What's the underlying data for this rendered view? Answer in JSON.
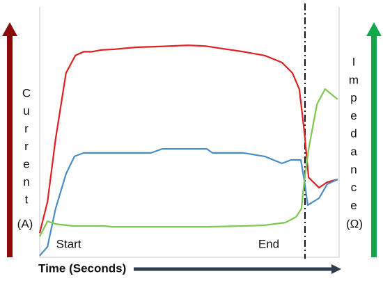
{
  "chart_data": {
    "type": "line",
    "xlim": [
      0,
      100
    ],
    "ylim": [
      0,
      100
    ],
    "y_label_letters": [
      "C",
      "u",
      "r",
      "r",
      "e",
      "n",
      "t"
    ],
    "y_unit": "(A)",
    "y2_label_letters": [
      "I",
      "m",
      "p",
      "e",
      "d",
      "a",
      "n",
      "c",
      "e"
    ],
    "y2_unit": "(Ω)",
    "x_label": "Time (Seconds)",
    "annotations": [
      {
        "text": "Start",
        "x": 5.5
      },
      {
        "text": "End",
        "x": 73
      }
    ],
    "marker_x": 88.6,
    "series": [
      {
        "color": "#e02020",
        "x": [
          0,
          2.6,
          5.3,
          8.8,
          11.9,
          14.7,
          17.4,
          20.5,
          25.1,
          32.1,
          40.2,
          49.5,
          55.3,
          61.2,
          68.1,
          75.1,
          80.9,
          84.4,
          86.7,
          88.4,
          89.8,
          93.3,
          96.0,
          99.5
        ],
        "values": [
          9.7,
          22.2,
          47.2,
          73.6,
          80.6,
          82.1,
          82.1,
          82.8,
          83.1,
          83.9,
          84.2,
          84.7,
          84.4,
          83.3,
          82.1,
          80.6,
          77.8,
          73.6,
          67.2,
          50,
          31.9,
          27.8,
          30,
          31.1
        ]
      },
      {
        "color": "#4a8cc4",
        "x": [
          0,
          2.6,
          5.3,
          8.8,
          11.6,
          14.7,
          37.2,
          40.9,
          55.8,
          57.7,
          68.1,
          75.1,
          80.9,
          83.9,
          87.2,
          88.4,
          89.5,
          93.3,
          96.0,
          99.5
        ],
        "values": [
          0.6,
          4.2,
          19.4,
          33.3,
          40.3,
          41.7,
          41.7,
          43.3,
          43.3,
          41.7,
          41.7,
          40.3,
          37.5,
          38.9,
          38.9,
          30.6,
          20.8,
          23.6,
          29.2,
          31.1
        ]
      },
      {
        "color": "#7cc850",
        "x": [
          0,
          2.6,
          5.3,
          11.2,
          21.6,
          23.9,
          56.5,
          68.1,
          75.1,
          82.1,
          85.6,
          87.4,
          88.4,
          89.8,
          92.6,
          95.3,
          99.5
        ],
        "values": [
          8.3,
          14.4,
          13.3,
          12.5,
          12.5,
          12.2,
          12.2,
          12.5,
          12.8,
          13.9,
          16.1,
          19.4,
          30.6,
          43.1,
          61.1,
          67.2,
          63.1
        ]
      }
    ]
  }
}
